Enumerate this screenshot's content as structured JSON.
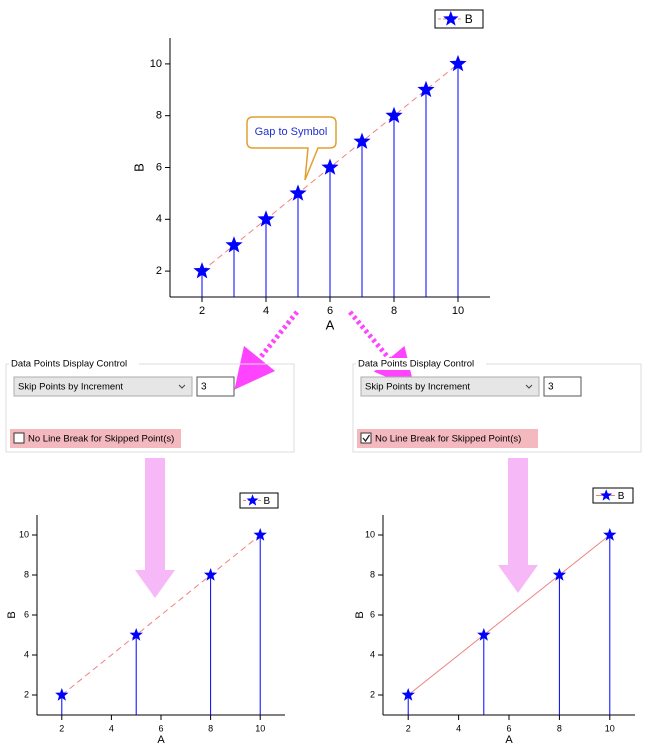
{
  "chart_data": [
    {
      "type": "line",
      "x": [
        2,
        3,
        4,
        5,
        6,
        7,
        8,
        9,
        10
      ],
      "series": [
        {
          "name": "B",
          "color": "#0000ff",
          "values": [
            2,
            3,
            4,
            5,
            6,
            7,
            8,
            9,
            10
          ]
        }
      ],
      "line_color": "#f08080",
      "line_style": "dashed",
      "marker": "star",
      "drop_lines": true,
      "xlabel": "A",
      "ylabel": "B",
      "xlim": [
        1,
        11
      ],
      "ylim": [
        1,
        11
      ],
      "xticks": [
        2,
        4,
        6,
        8,
        10
      ],
      "yticks": [
        2,
        4,
        6,
        8,
        10
      ],
      "legend": "upper right"
    },
    {
      "type": "line",
      "x": [
        2,
        5,
        8,
        10
      ],
      "series": [
        {
          "name": "B",
          "color": "#0000ff",
          "values": [
            2,
            5,
            8,
            10
          ]
        }
      ],
      "line_color": "#f08080",
      "line_style": "dashed",
      "marker": "star",
      "drop_lines": true,
      "xlabel": "A",
      "ylabel": "B",
      "xlim": [
        1,
        11
      ],
      "ylim": [
        1,
        11
      ],
      "xticks": [
        2,
        4,
        6,
        8,
        10
      ],
      "yticks": [
        2,
        4,
        6,
        8,
        10
      ],
      "legend": "upper right"
    },
    {
      "type": "line",
      "x": [
        2,
        5,
        8,
        10
      ],
      "series": [
        {
          "name": "B",
          "color": "#0000ff",
          "values": [
            2,
            5,
            8,
            10
          ]
        }
      ],
      "line_color": "#f08080",
      "line_style": "solid",
      "marker": "star",
      "drop_lines": true,
      "xlabel": "A",
      "ylabel": "B",
      "xlim": [
        1,
        11
      ],
      "ylim": [
        1,
        11
      ],
      "xticks": [
        2,
        4,
        6,
        8,
        10
      ],
      "yticks": [
        2,
        4,
        6,
        8,
        10
      ],
      "legend": "upper right"
    }
  ],
  "callout": "Gap to Symbol",
  "panels": [
    {
      "title": "Data Points Display Control",
      "dropdown": "Skip Points by Increment",
      "increment": 3,
      "checkbox_label": "No Line Break for Skipped Point(s)",
      "checked": false
    },
    {
      "title": "Data Points Display Control",
      "dropdown": "Skip Points by Increment",
      "increment": 3,
      "checkbox_label": "No Line Break for Skipped Point(s)",
      "checked": true
    }
  ]
}
